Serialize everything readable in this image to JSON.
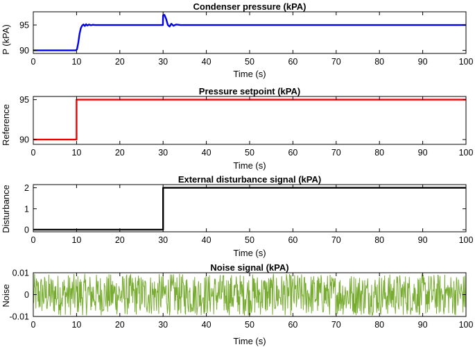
{
  "figure": {
    "width": 685,
    "height": 500
  },
  "chart_data": [
    {
      "type": "line",
      "title": "Condenser pressure (kPA)",
      "xlabel": "Time (s)",
      "ylabel": "P (kPA)",
      "xlim": [
        0,
        100
      ],
      "ylim": [
        89.4,
        97.6
      ],
      "xticks": [
        0,
        10,
        20,
        30,
        40,
        50,
        60,
        70,
        80,
        90,
        100
      ],
      "yticks": [
        90,
        95
      ],
      "grid": false,
      "series": [
        {
          "name": "Condenser pressure",
          "color": "#0000ee",
          "x": [
            0,
            9.8,
            10.1,
            10.4,
            10.7,
            11.0,
            11.3,
            11.6,
            11.9,
            12.2,
            12.5,
            12.9,
            13.3,
            13.8,
            14.3,
            15,
            20,
            29.95,
            30.0,
            30.3,
            30.7,
            31.1,
            31.5,
            31.9,
            32.4,
            33,
            34,
            40,
            60,
            80,
            100
          ],
          "y": [
            90,
            90,
            90.2,
            91.5,
            93.3,
            94.4,
            94.9,
            95.1,
            94.8,
            95.15,
            94.9,
            95.1,
            94.95,
            95.05,
            95.0,
            95.0,
            95.0,
            95.0,
            96.9,
            97.0,
            96.2,
            95.0,
            94.7,
            95.25,
            94.85,
            95.1,
            95.0,
            95.0,
            95.0,
            95.0,
            95.0
          ]
        }
      ]
    },
    {
      "type": "line",
      "title": "Pressure setpoint (kPA)",
      "xlabel": "Time (s)",
      "ylabel": "Reference",
      "xlim": [
        0,
        100
      ],
      "ylim": [
        89.4,
        95.4
      ],
      "xticks": [
        0,
        10,
        20,
        30,
        40,
        50,
        60,
        70,
        80,
        90,
        100
      ],
      "yticks": [
        90,
        95
      ],
      "grid": false,
      "series": [
        {
          "name": "Pressure setpoint",
          "color": "#ee0000",
          "x": [
            0,
            10,
            10,
            100
          ],
          "y": [
            90,
            90,
            95,
            95
          ]
        }
      ]
    },
    {
      "type": "line",
      "title": "External disturbance signal (kPA)",
      "xlabel": "Time (s)",
      "ylabel": "Disturbance",
      "xlim": [
        0,
        100
      ],
      "ylim": [
        -0.1,
        2.15
      ],
      "xticks": [
        0,
        10,
        20,
        30,
        40,
        50,
        60,
        70,
        80,
        90,
        100
      ],
      "yticks": [
        0,
        1,
        2
      ],
      "grid": false,
      "series": [
        {
          "name": "External disturbance",
          "color": "#000000",
          "x": [
            0,
            30,
            30,
            100
          ],
          "y": [
            0,
            0,
            2,
            2
          ]
        }
      ]
    },
    {
      "type": "line",
      "title": "Noise signal (kPA)",
      "xlabel": "Time (s)",
      "ylabel": "Noise",
      "xlim": [
        0,
        100
      ],
      "ylim": [
        -0.01,
        0.01
      ],
      "xticks": [
        0,
        10,
        20,
        30,
        40,
        50,
        60,
        70,
        80,
        90,
        100
      ],
      "yticks": [
        -0.01,
        0,
        0.01
      ],
      "ytick_labels": [
        "-0.01",
        "0",
        "0.01"
      ],
      "grid": false,
      "series": [
        {
          "name": "Noise",
          "color": "#77ac30",
          "generator": "uniform-random",
          "x_start": 0,
          "x_end": 100,
          "dx": 0.1,
          "amplitude": 0.0095
        }
      ]
    }
  ]
}
